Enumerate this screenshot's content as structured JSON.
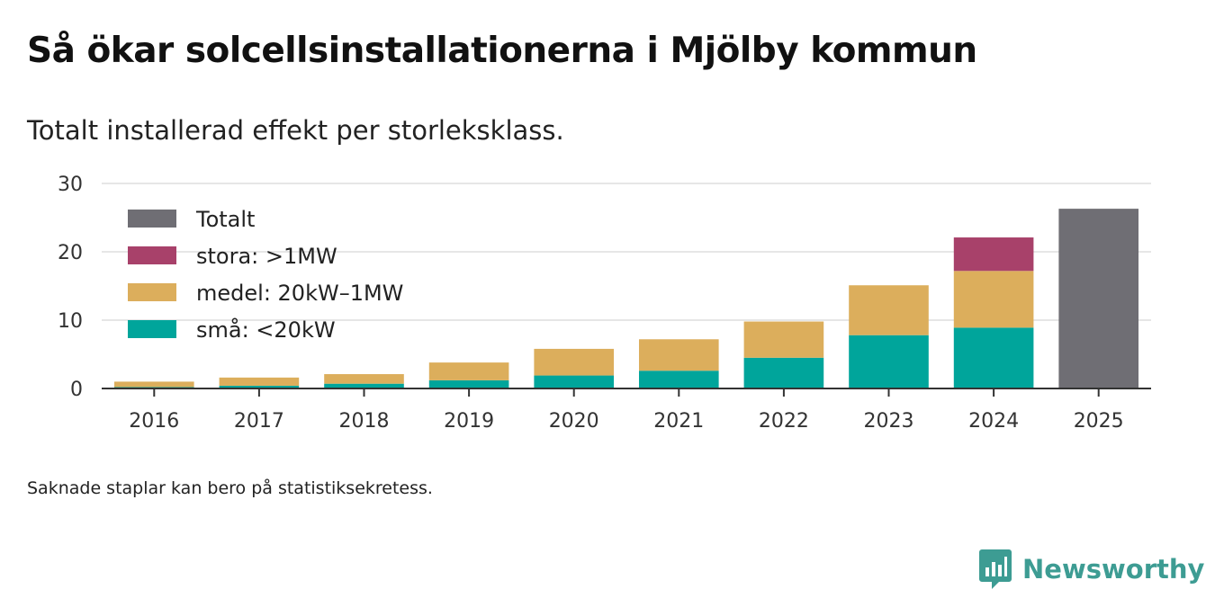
{
  "header": {
    "title": "Så ökar solcellsinstallationerna i Mjölby kommun",
    "subtitle": "Totalt installerad effekt per storleksklass."
  },
  "chart_data": {
    "type": "bar",
    "stacked": true,
    "title": "Så ökar solcellsinstallationerna i Mjölby kommun",
    "subtitle": "Totalt installerad effekt per storleksklass.",
    "xlabel": "",
    "ylabel": "",
    "ylim": [
      0,
      30
    ],
    "yticks": [
      0,
      10,
      20,
      30
    ],
    "grid": true,
    "legend_position": "top-left",
    "categories": [
      "2016",
      "2017",
      "2018",
      "2019",
      "2020",
      "2021",
      "2022",
      "2023",
      "2024",
      "2025"
    ],
    "series": [
      {
        "name": "små: <20kW",
        "color": "#00a59b",
        "values": [
          0.2,
          0.4,
          0.7,
          1.2,
          1.9,
          2.6,
          4.5,
          7.8,
          8.9,
          null
        ]
      },
      {
        "name": "medel: 20kW–1MW",
        "color": "#dcae5c",
        "values": [
          0.8,
          1.2,
          1.4,
          2.6,
          3.9,
          4.6,
          5.3,
          7.3,
          8.3,
          null
        ]
      },
      {
        "name": "stora: >1MW",
        "color": "#a8416a",
        "values": [
          null,
          null,
          null,
          null,
          null,
          null,
          null,
          null,
          4.9,
          null
        ]
      },
      {
        "name": "Totalt",
        "color": "#6f6e74",
        "values": [
          null,
          null,
          null,
          null,
          null,
          null,
          null,
          null,
          null,
          26.3
        ]
      }
    ],
    "legend": [
      "Totalt",
      "stora: >1MW",
      "medel: 20kW–1MW",
      "små: <20kW"
    ]
  },
  "footer": {
    "note": "Saknade staplar kan bero på statistiksekretess.",
    "brand": "Newsworthy",
    "brand_color": "#3d9c93"
  }
}
